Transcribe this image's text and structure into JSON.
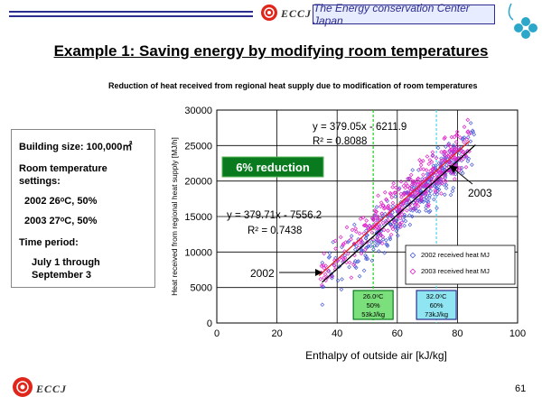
{
  "header": {
    "org_badge": "The Energy conservation Center Japan",
    "logo_text": "ECCJ"
  },
  "page_title": "Example 1:  Saving energy by modifying room temperatures",
  "subtitle": "Reduction of heat received from regional heat supply due to modification of room temperatures",
  "info": {
    "building_size": "Building size: 100,000㎡",
    "room_temp_label": "Room temperature settings:",
    "row_2002": "2002    26ᵒC, 50%",
    "row_2003": "2003    27ᵒC, 50%",
    "time_label": "Time period:",
    "time_value": "July 1 through September 3"
  },
  "footer": {
    "logo_text": "ECCJ",
    "page_number": "61"
  },
  "colors": {
    "brand_navy": "#2d2d8f",
    "series_2002": "#4a5cd8",
    "series_2003": "#e020c8",
    "reduction_green": "#0a7a1e"
  },
  "chart_data": {
    "type": "scatter",
    "xlabel": "Enthalpy of outside air [kJ/kg]",
    "ylabel": "Heat received from regional heat supply [MJ/h]",
    "xlim": [
      0,
      100
    ],
    "ylim": [
      0,
      30000
    ],
    "xticks": [
      "0",
      "20",
      "40",
      "60",
      "80",
      "100"
    ],
    "yticks": [
      "0",
      "5000",
      "10000",
      "15000",
      "20000",
      "25000",
      "30000"
    ],
    "grid": true,
    "legend_position": "lower-right",
    "series": [
      {
        "name": "2002 received heat MJ",
        "color": "#4a5cd8",
        "x_range": [
          35,
          86
        ],
        "fit": {
          "slope": 379.71,
          "intercept": -7556.2,
          "label_eq": "y = 379.71x - 7556.2",
          "label_r2": "R² = 0.7438"
        }
      },
      {
        "name": "2003 received heat MJ",
        "color": "#e020c8",
        "x_range": [
          34,
          84
        ],
        "fit": {
          "slope": 379.05,
          "intercept": -6211.9,
          "label_eq": "y = 379.05x - 6211.9",
          "label_r2": "R² = 0.8088"
        }
      }
    ],
    "annotations": {
      "reduction": "6% reduction",
      "label_2002": "2002",
      "label_2003": "2003",
      "box_left": {
        "x": 52,
        "lines": [
          "26.0ᵒC",
          "50%",
          "53kJ/kg"
        ]
      },
      "box_right": {
        "x": 73,
        "lines": [
          "32.0ᵒC",
          "60%",
          "73kJ/kg"
        ]
      }
    }
  }
}
